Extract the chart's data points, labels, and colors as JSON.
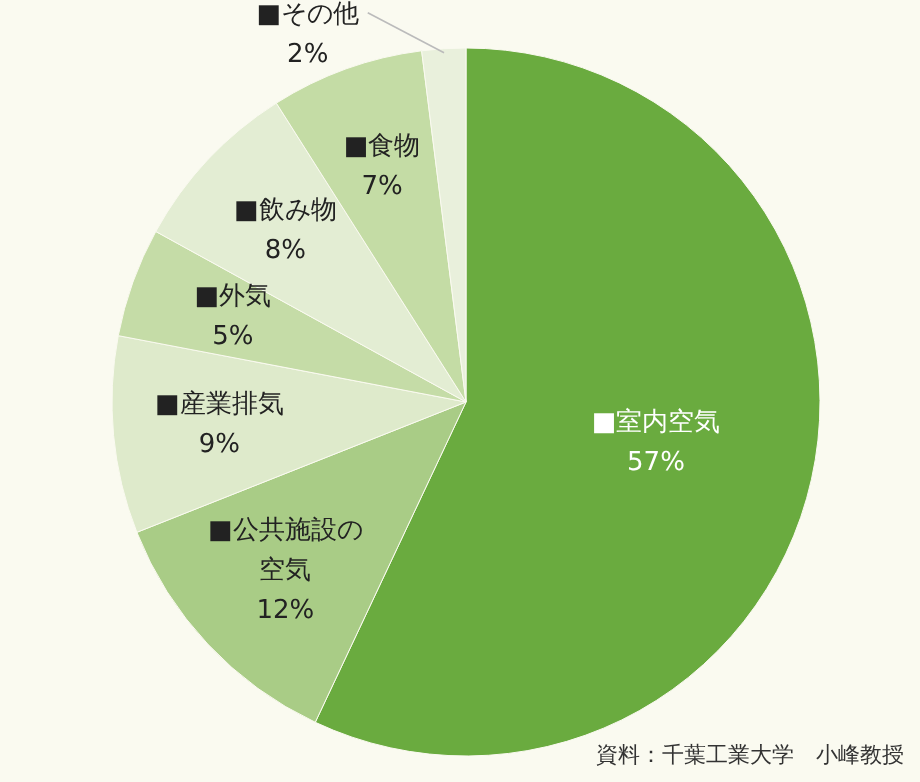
{
  "chart_data": {
    "type": "pie",
    "categories": [
      "■室内空気",
      "■公共施設の空気",
      "■産業排気",
      "■外気",
      "■飲み物",
      "■食物",
      "■その他"
    ],
    "values": [
      57,
      12,
      9,
      5,
      8,
      7,
      2
    ],
    "colors": [
      "#6aab3f",
      "#a9cc86",
      "#deeacb",
      "#c5dca7",
      "#e3edd3",
      "#c4dca5",
      "#e9f0dc"
    ],
    "value_labels": [
      "57%",
      "12%",
      "9%",
      "5%",
      "8%",
      "7%",
      "2%"
    ],
    "annotations": [
      "資料：千葉工業大学　小峰教授"
    ]
  }
}
